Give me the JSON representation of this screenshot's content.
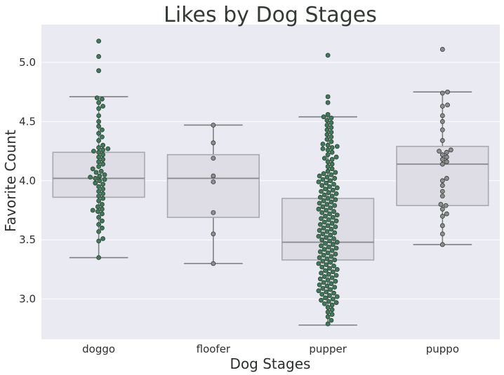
{
  "chart_data": {
    "type": "boxplot-swarm",
    "title": "Likes by Dog Stages",
    "xlabel": "Dog Stages",
    "ylabel": "Favorite Count",
    "ylim": [
      2.66,
      5.32
    ],
    "yticks": [
      3.0,
      3.5,
      4.0,
      4.5,
      5.0
    ],
    "grid": true,
    "colors": {
      "plot_bg": "#eaeaf2",
      "grid": "#ffffff",
      "box_fill": "#dedde5",
      "box_line": "#a8a8ad",
      "median": "#8c8c90",
      "whisker": "#7f7f83",
      "point_green": "#3a7d57",
      "point_gray": "#8e8e8e",
      "point_edge": "#2f3b33"
    },
    "categories": [
      "doggo",
      "floofer",
      "pupper",
      "puppo"
    ],
    "boxes": [
      {
        "category": "doggo",
        "whisker_low": 3.35,
        "q1": 3.86,
        "median": 4.02,
        "q3": 4.24,
        "whisker_high": 4.71,
        "point_color": "green",
        "points": [
          5.18,
          5.05,
          4.93,
          4.7,
          4.69,
          4.66,
          4.63,
          4.61,
          4.55,
          4.5,
          4.46,
          4.43,
          4.4,
          4.37,
          4.34,
          4.3,
          4.28,
          4.27,
          4.26,
          4.25,
          4.24,
          4.22,
          4.2,
          4.18,
          4.16,
          4.14,
          4.12,
          4.1,
          4.08,
          4.07,
          4.05,
          4.04,
          4.03,
          4.02,
          4.01,
          4.0,
          3.98,
          3.97,
          3.95,
          3.93,
          3.91,
          3.89,
          3.87,
          3.85,
          3.83,
          3.8,
          3.78,
          3.76,
          3.75,
          3.74,
          3.72,
          3.69,
          3.66,
          3.63,
          3.6,
          3.57,
          3.51,
          3.49,
          3.35
        ]
      },
      {
        "category": "floofer",
        "whisker_low": 3.3,
        "q1": 3.69,
        "median": 4.02,
        "q3": 4.22,
        "whisker_high": 4.47,
        "point_color": "gray",
        "points": [
          4.47,
          4.32,
          4.19,
          4.04,
          3.99,
          3.73,
          3.55,
          3.3
        ]
      },
      {
        "category": "pupper",
        "whisker_low": 2.78,
        "q1": 3.33,
        "median": 3.48,
        "q3": 3.85,
        "whisker_high": 4.54,
        "point_color": "green",
        "points": [
          5.06,
          4.71,
          4.66,
          4.56,
          4.54,
          4.53,
          4.51,
          4.49,
          4.47,
          4.45,
          4.43,
          4.41,
          4.39,
          4.37,
          4.35,
          4.33,
          4.31,
          4.3,
          4.29,
          4.28,
          4.27,
          4.26,
          4.24,
          4.22,
          4.2,
          4.19,
          4.18,
          4.16,
          4.14,
          4.12,
          4.1,
          4.08,
          4.07,
          4.06,
          4.05,
          4.04,
          4.03,
          4.02,
          4.01,
          4.0,
          3.99,
          3.98,
          3.97,
          3.96,
          3.95,
          3.94,
          3.93,
          3.92,
          3.91,
          3.9,
          3.89,
          3.88,
          3.87,
          3.86,
          3.85,
          3.84,
          3.83,
          3.82,
          3.81,
          3.8,
          3.79,
          3.78,
          3.77,
          3.76,
          3.75,
          3.74,
          3.73,
          3.72,
          3.71,
          3.7,
          3.69,
          3.68,
          3.67,
          3.66,
          3.65,
          3.64,
          3.63,
          3.62,
          3.61,
          3.6,
          3.59,
          3.58,
          3.57,
          3.56,
          3.55,
          3.54,
          3.53,
          3.52,
          3.51,
          3.5,
          3.49,
          3.48,
          3.47,
          3.46,
          3.45,
          3.44,
          3.43,
          3.42,
          3.41,
          3.4,
          3.39,
          3.38,
          3.37,
          3.36,
          3.35,
          3.34,
          3.33,
          3.32,
          3.31,
          3.3,
          3.29,
          3.28,
          3.27,
          3.26,
          3.25,
          3.24,
          3.23,
          3.22,
          3.21,
          3.2,
          3.19,
          3.18,
          3.17,
          3.16,
          3.15,
          3.14,
          3.13,
          3.12,
          3.11,
          3.1,
          3.09,
          3.08,
          3.07,
          3.06,
          3.05,
          3.04,
          3.03,
          3.02,
          3.01,
          3.0,
          2.99,
          2.98,
          2.97,
          2.96,
          2.95,
          2.93,
          2.91,
          2.89,
          2.87,
          2.85,
          2.82,
          2.79
        ]
      },
      {
        "category": "puppo",
        "whisker_low": 3.46,
        "q1": 3.79,
        "median": 4.14,
        "q3": 4.29,
        "whisker_high": 4.75,
        "point_color": "gray",
        "points": [
          5.11,
          4.75,
          4.74,
          4.64,
          4.63,
          4.55,
          4.5,
          4.43,
          4.34,
          4.26,
          4.25,
          4.24,
          4.22,
          4.2,
          4.18,
          4.16,
          4.14,
          4.02,
          4.0,
          3.96,
          3.91,
          3.87,
          3.8,
          3.79,
          3.76,
          3.72,
          3.7,
          3.62,
          3.55,
          3.46
        ]
      }
    ]
  }
}
